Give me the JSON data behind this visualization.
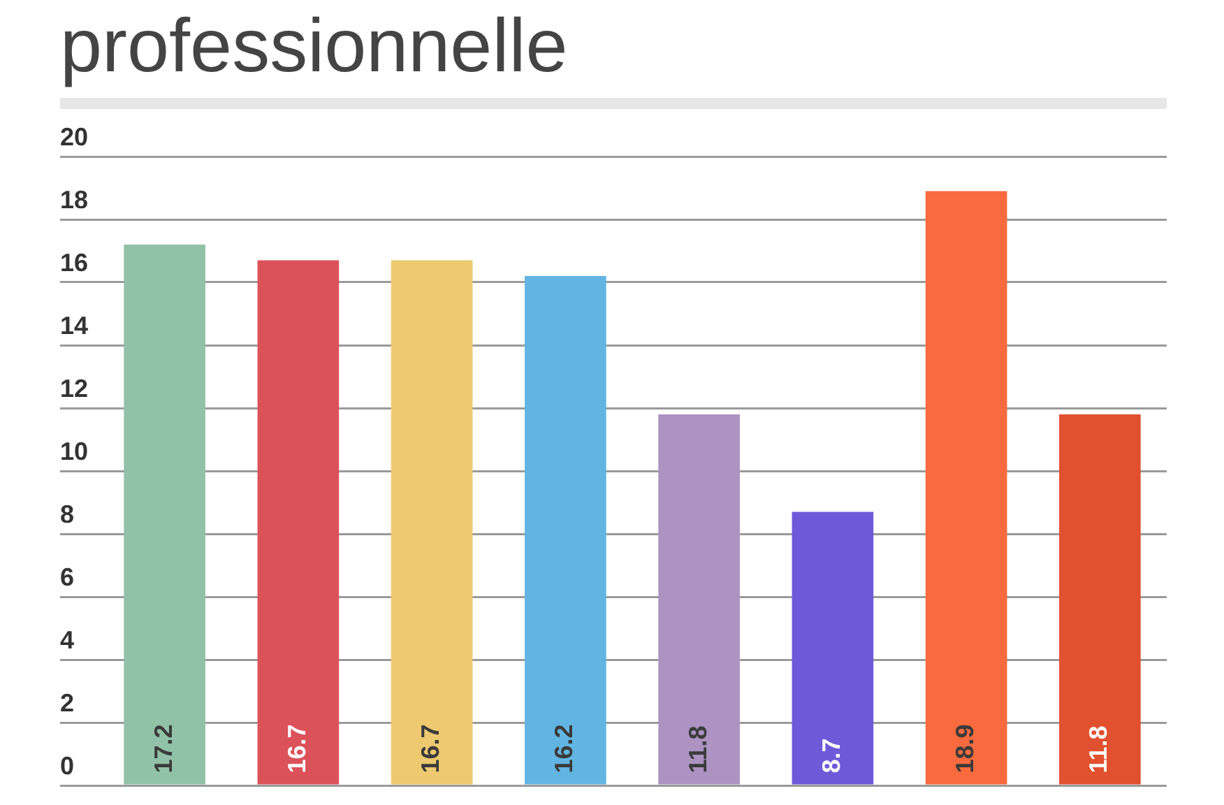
{
  "chart_data": {
    "type": "bar",
    "title": "professionnelle",
    "categories": [
      null,
      null,
      null,
      null,
      null,
      null,
      null,
      null
    ],
    "values": [
      17.2,
      16.7,
      16.7,
      16.2,
      11.8,
      8.7,
      18.9,
      11.8
    ],
    "colors": [
      "#91c2a8",
      "#dc525b",
      "#eec96f",
      "#62b5e2",
      "#ac93c2",
      "#6e5ad9",
      "#f96b3f",
      "#e1502f"
    ],
    "ylim": [
      0,
      20
    ],
    "yticks": [
      0,
      2,
      4,
      6,
      8,
      10,
      12,
      14,
      16,
      18,
      20
    ],
    "grid": "y",
    "data_labels": true
  }
}
